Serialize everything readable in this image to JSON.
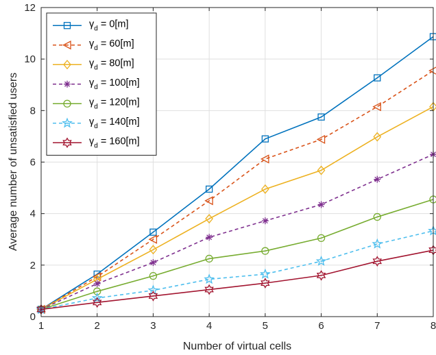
{
  "chart_data": {
    "type": "line",
    "xlabel": "Number of virtual cells",
    "ylabel": "Average number of unsatisfied users",
    "xlim": [
      1,
      8
    ],
    "ylim": [
      0,
      12
    ],
    "xticks": [
      "1",
      "2",
      "3",
      "4",
      "5",
      "6",
      "7",
      "8"
    ],
    "yticks": [
      "0",
      "2",
      "4",
      "6",
      "8",
      "10",
      "12"
    ],
    "grid": true,
    "legend_position": "top-left",
    "x": [
      1,
      2,
      3,
      4,
      5,
      6,
      7,
      8
    ],
    "series": [
      {
        "name": "0[m]",
        "color": "#0072BD",
        "dash": "solid",
        "marker": "square",
        "values": [
          0.28,
          1.65,
          3.28,
          4.95,
          6.9,
          7.75,
          9.27,
          10.87
        ]
      },
      {
        "name": "60[m]",
        "color": "#D95319",
        "dash": "dashed",
        "marker": "triangle-left",
        "values": [
          0.28,
          1.55,
          3.0,
          4.5,
          6.12,
          6.88,
          8.15,
          9.55
        ]
      },
      {
        "name": "80[m]",
        "color": "#EDB120",
        "dash": "solid",
        "marker": "diamond",
        "values": [
          0.28,
          1.45,
          2.6,
          3.8,
          4.95,
          5.68,
          6.98,
          8.15
        ]
      },
      {
        "name": "100[m]",
        "color": "#7E2F8E",
        "dash": "dashed",
        "marker": "asterisk",
        "values": [
          0.28,
          1.28,
          2.1,
          3.08,
          3.72,
          4.35,
          5.33,
          6.3
        ]
      },
      {
        "name": "120[m]",
        "color": "#77AC30",
        "dash": "solid",
        "marker": "circle",
        "values": [
          0.28,
          0.98,
          1.58,
          2.25,
          2.55,
          3.05,
          3.87,
          4.55
        ]
      },
      {
        "name": "140[m]",
        "color": "#4DBEEE",
        "dash": "dashed",
        "marker": "pentagram",
        "values": [
          0.28,
          0.72,
          1.02,
          1.45,
          1.65,
          2.15,
          2.82,
          3.33
        ]
      },
      {
        "name": "160[m]",
        "color": "#A2142F",
        "dash": "solid",
        "marker": "hexagram",
        "values": [
          0.28,
          0.55,
          0.8,
          1.05,
          1.3,
          1.6,
          2.15,
          2.58
        ]
      }
    ],
    "legend_prefix": "γ",
    "legend_subscript": "d",
    "legend_equals": " = "
  }
}
